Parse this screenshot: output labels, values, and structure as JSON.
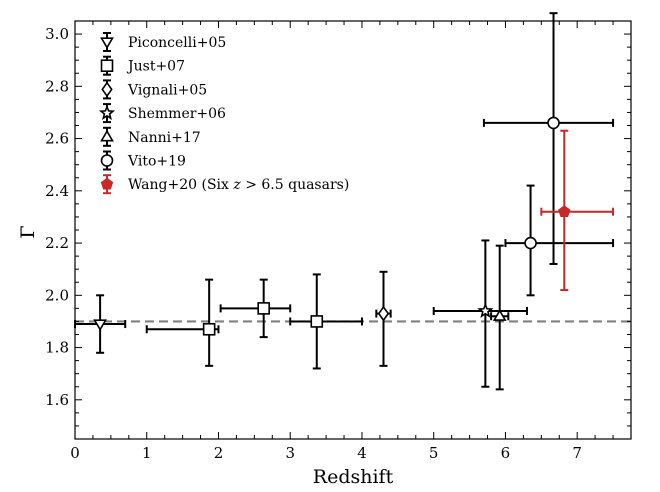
{
  "chart_data": {
    "type": "scatter",
    "xlabel": "Redshift",
    "ylabel": "Γ",
    "xlim": [
      0,
      7.75
    ],
    "ylim": [
      1.45,
      3.05
    ],
    "xticks": [
      0,
      1,
      2,
      3,
      4,
      5,
      6,
      7
    ],
    "yticks": [
      1.6,
      1.8,
      2.0,
      2.2,
      2.4,
      2.6,
      2.8,
      3.0
    ],
    "ytick_labels": [
      "1.6",
      "1.8",
      "2.0",
      "2.2",
      "2.4",
      "2.6",
      "2.8",
      "3.0"
    ],
    "reference_line": {
      "y": 1.9,
      "style": "dashed",
      "color": "#808080"
    },
    "legend_position": "top-left",
    "series": [
      {
        "name": "Piconcelli+05",
        "marker": "triangle-down",
        "color": "#000000",
        "points": [
          {
            "x": 0.35,
            "y": 1.89,
            "xerr": [
              0.35,
              0.35
            ],
            "yerr": [
              0.11,
              0.11
            ]
          }
        ]
      },
      {
        "name": "Just+07",
        "marker": "square",
        "color": "#000000",
        "points": [
          {
            "x": 1.87,
            "y": 1.87,
            "xerr": [
              0.87,
              0.13
            ],
            "yerr": [
              0.14,
              0.19
            ]
          },
          {
            "x": 2.63,
            "y": 1.95,
            "xerr": [
              0.6,
              0.37
            ],
            "yerr": [
              0.11,
              0.11
            ]
          },
          {
            "x": 3.37,
            "y": 1.9,
            "xerr": [
              0.37,
              0.63
            ],
            "yerr": [
              0.18,
              0.18
            ]
          }
        ]
      },
      {
        "name": "Vignali+05",
        "marker": "diamond",
        "color": "#000000",
        "points": [
          {
            "x": 4.3,
            "y": 1.93,
            "xerr": [
              0.1,
              0.1
            ],
            "yerr": [
              0.2,
              0.16
            ]
          }
        ]
      },
      {
        "name": "Shemmer+06",
        "marker": "star",
        "color": "#000000",
        "points": [
          {
            "x": 5.72,
            "y": 1.94,
            "xerr": [
              0.72,
              0.58
            ],
            "yerr": [
              0.29,
              0.27
            ]
          }
        ]
      },
      {
        "name": "Nanni+17",
        "marker": "triangle-up",
        "color": "#000000",
        "points": [
          {
            "x": 5.92,
            "y": 1.92,
            "xerr": [
              0.12,
              0.12
            ],
            "yerr": [
              0.28,
              0.27
            ]
          }
        ]
      },
      {
        "name": "Vito+19",
        "marker": "circle",
        "color": "#000000",
        "points": [
          {
            "x": 6.35,
            "y": 2.2,
            "xerr": [
              0.35,
              1.15
            ],
            "yerr": [
              0.2,
              0.22
            ]
          },
          {
            "x": 6.67,
            "y": 2.66,
            "xerr": [
              0.97,
              0.83
            ],
            "yerr": [
              0.54,
              0.42
            ]
          }
        ]
      },
      {
        "name": "Wang+20 (Six z > 6.5 quasars)",
        "marker": "pentagon",
        "color": "#c62828",
        "points": [
          {
            "x": 6.82,
            "y": 2.32,
            "xerr": [
              0.32,
              0.68
            ],
            "yerr": [
              0.3,
              0.31
            ]
          }
        ]
      }
    ]
  },
  "legend": {
    "items": [
      {
        "label": "Piconcelli+05",
        "marker": "triangle-down",
        "color": "#000000"
      },
      {
        "label": "Just+07",
        "marker": "square",
        "color": "#000000"
      },
      {
        "label": "Vignali+05",
        "marker": "diamond",
        "color": "#000000"
      },
      {
        "label": "Shemmer+06",
        "marker": "star",
        "color": "#000000"
      },
      {
        "label": "Nanni+17",
        "marker": "triangle-up",
        "color": "#000000"
      },
      {
        "label": "Vito+19",
        "marker": "circle",
        "color": "#000000"
      },
      {
        "label_prefix": "Wang+20 (Six ",
        "label_var": "z",
        "label_suffix": " > 6.5 quasars)",
        "marker": "pentagon",
        "color": "#c62828"
      }
    ]
  }
}
